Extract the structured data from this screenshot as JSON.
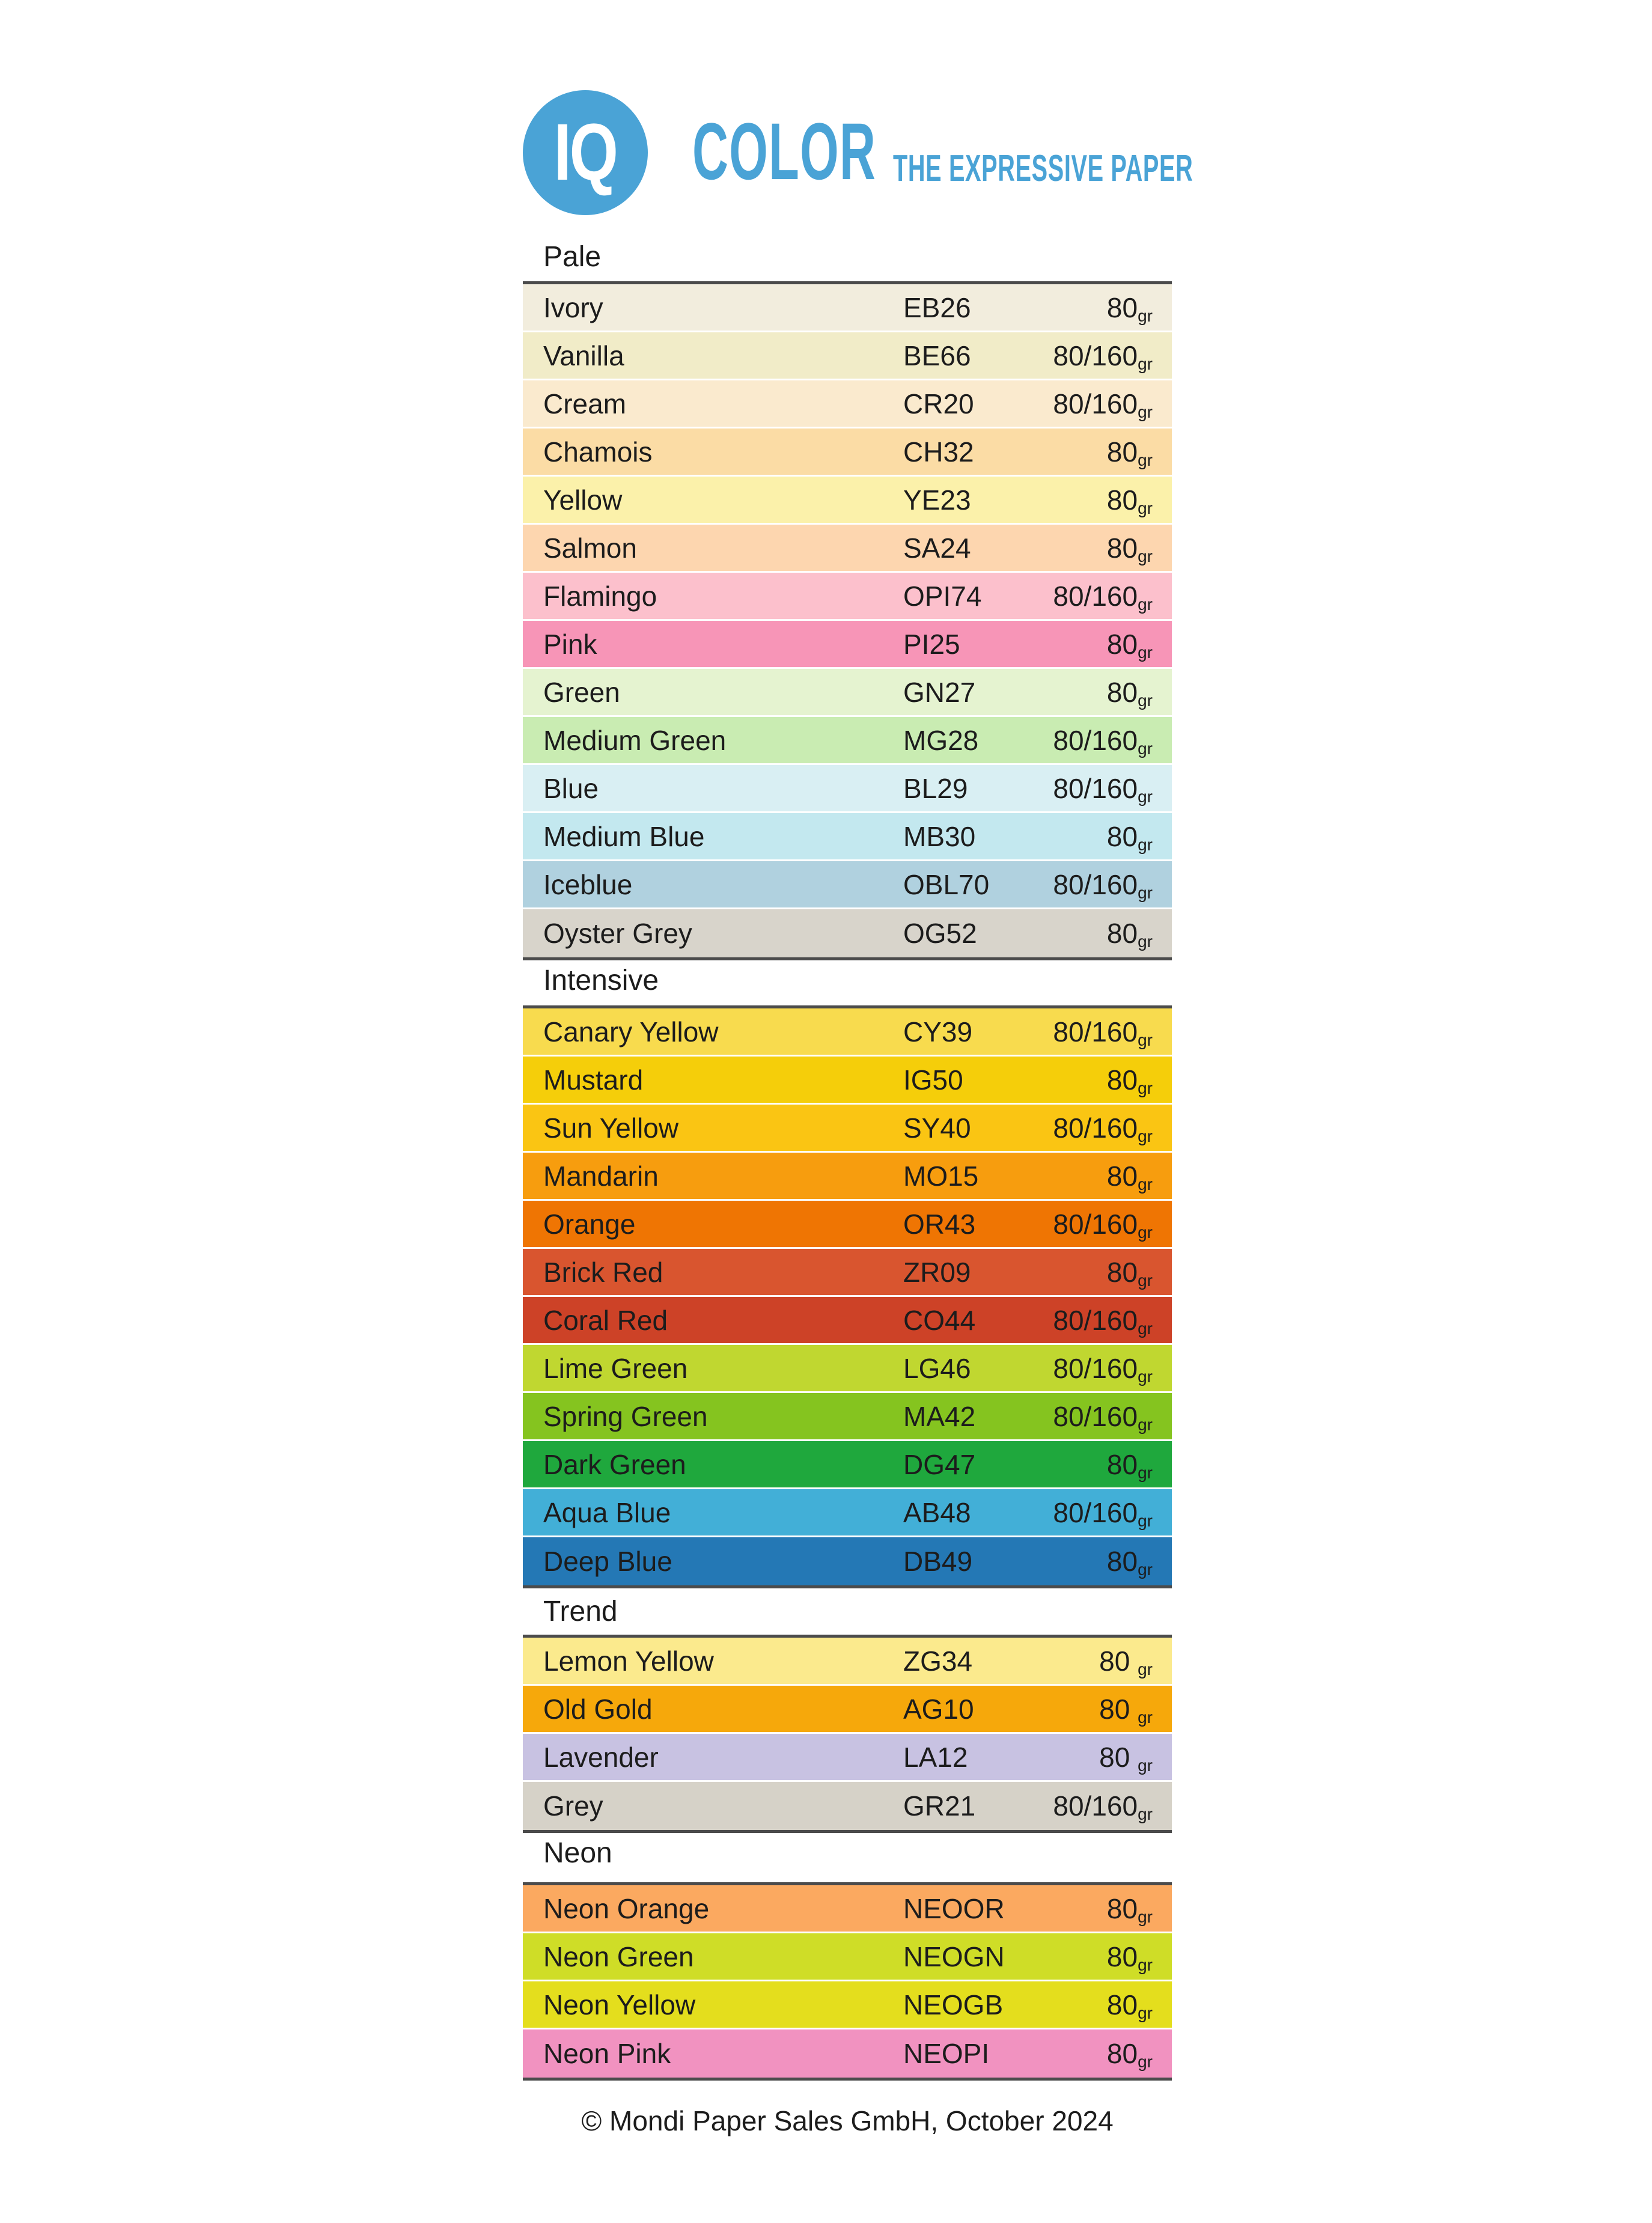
{
  "logo": {
    "monogram": "IQ",
    "wordmark": "COLOR",
    "tagline": "THE EXPRESSIVE PAPER",
    "brand_color": "#4AA3D6"
  },
  "sections": [
    {
      "title": "Pale",
      "rows": [
        {
          "name": "Ivory",
          "code": "EB26",
          "weight_main": "80",
          "weight_sub": "gr",
          "color": "#F2EDDD"
        },
        {
          "name": "Vanilla",
          "code": "BE66",
          "weight_main": "80/160",
          "weight_sub": "gr",
          "color": "#F1ECC8"
        },
        {
          "name": "Cream",
          "code": "CR20",
          "weight_main": "80/160",
          "weight_sub": "gr",
          "color": "#FAEACE"
        },
        {
          "name": "Chamois",
          "code": "CH32",
          "weight_main": "80",
          "weight_sub": "gr",
          "color": "#FBDCA5"
        },
        {
          "name": "Yellow",
          "code": "YE23",
          "weight_main": "80",
          "weight_sub": "gr",
          "color": "#FBF1AA"
        },
        {
          "name": "Salmon",
          "code": "SA24",
          "weight_main": "80",
          "weight_sub": "gr",
          "color": "#FDD6AF"
        },
        {
          "name": "Flamingo",
          "code": "OPI74",
          "weight_main": "80/160",
          "weight_sub": "gr",
          "color": "#FCC0CC"
        },
        {
          "name": "Pink",
          "code": "PI25",
          "weight_main": "80",
          "weight_sub": "gr",
          "color": "#F795B7"
        },
        {
          "name": "Green",
          "code": "GN27",
          "weight_main": "80",
          "weight_sub": "gr",
          "color": "#E5F3D0"
        },
        {
          "name": "Medium Green",
          "code": "MG28",
          "weight_main": "80/160",
          "weight_sub": "gr",
          "color": "#C9ECB2"
        },
        {
          "name": "Blue",
          "code": "BL29",
          "weight_main": "80/160",
          "weight_sub": "gr",
          "color": "#D9EFF3"
        },
        {
          "name": "Medium Blue",
          "code": "MB30",
          "weight_main": "80",
          "weight_sub": "gr",
          "color": "#C3E8EF"
        },
        {
          "name": "Iceblue",
          "code": "OBL70",
          "weight_main": "80/160",
          "weight_sub": "gr",
          "color": "#B0D1DF"
        },
        {
          "name": "Oyster Grey",
          "code": "OG52",
          "weight_main": "80",
          "weight_sub": "gr",
          "color": "#D8D4CB"
        }
      ]
    },
    {
      "title": "Intensive",
      "rows": [
        {
          "name": "Canary Yellow",
          "code": "CY39",
          "weight_main": "80/160",
          "weight_sub": "gr",
          "color": "#F8DB4E"
        },
        {
          "name": "Mustard",
          "code": "IG50",
          "weight_main": "80",
          "weight_sub": "gr",
          "color": "#F5CE0A"
        },
        {
          "name": "Sun Yellow",
          "code": "SY40",
          "weight_main": "80/160",
          "weight_sub": "gr",
          "color": "#FAC513"
        },
        {
          "name": "Mandarin",
          "code": "MO15",
          "weight_main": "80",
          "weight_sub": "gr",
          "color": "#F79D0E"
        },
        {
          "name": "Orange",
          "code": "OR43",
          "weight_main": "80/160",
          "weight_sub": "gr",
          "color": "#EF7503"
        },
        {
          "name": "Brick Red",
          "code": "ZR09",
          "weight_main": "80",
          "weight_sub": "gr",
          "color": "#D9552F"
        },
        {
          "name": "Coral Red",
          "code": "CO44",
          "weight_main": "80/160",
          "weight_sub": "gr",
          "color": "#CD4227"
        },
        {
          "name": "Lime Green",
          "code": "LG46",
          "weight_main": "80/160",
          "weight_sub": "gr",
          "color": "#C0D730"
        },
        {
          "name": "Spring Green",
          "code": "MA42",
          "weight_main": "80/160",
          "weight_sub": "gr",
          "color": "#85C41F"
        },
        {
          "name": "Dark Green",
          "code": "DG47",
          "weight_main": "80",
          "weight_sub": "gr",
          "color": "#1FA83D"
        },
        {
          "name": "Aqua Blue",
          "code": "AB48",
          "weight_main": "80/160",
          "weight_sub": "gr",
          "color": "#42AFD7"
        },
        {
          "name": "Deep Blue",
          "code": "DB49",
          "weight_main": "80",
          "weight_sub": "gr",
          "color": "#2478B5"
        }
      ]
    },
    {
      "title": "Trend",
      "rows": [
        {
          "name": "Lemon Yellow",
          "code": "ZG34",
          "weight_main": "80 ",
          "weight_sub": "gr",
          "color": "#FBEA8D"
        },
        {
          "name": "Old Gold",
          "code": "AG10",
          "weight_main": "80 ",
          "weight_sub": "gr",
          "color": "#F6A80B"
        },
        {
          "name": "Lavender",
          "code": "LA12",
          "weight_main": "80 ",
          "weight_sub": "gr",
          "color": "#C8C2E2"
        },
        {
          "name": "Grey",
          "code": "GR21",
          "weight_main": "80/160",
          "weight_sub": "gr",
          "color": "#D6D2C8"
        }
      ]
    },
    {
      "title": "Neon",
      "rows": [
        {
          "name": "Neon Orange",
          "code": "NEOOR",
          "weight_main": "80",
          "weight_sub": "gr",
          "color": "#FBA960"
        },
        {
          "name": "Neon Green",
          "code": "NEOGN",
          "weight_main": "80",
          "weight_sub": "gr",
          "color": "#CFDD27"
        },
        {
          "name": "Neon Yellow",
          "code": "NEOGB",
          "weight_main": "80",
          "weight_sub": "gr",
          "color": "#E4DE1D"
        },
        {
          "name": "Neon Pink",
          "code": "NEOPI",
          "weight_main": "80",
          "weight_sub": "gr",
          "color": "#F192C0"
        }
      ]
    }
  ],
  "footer": {
    "text": "© Mondi Paper Sales GmbH, October 2024"
  }
}
